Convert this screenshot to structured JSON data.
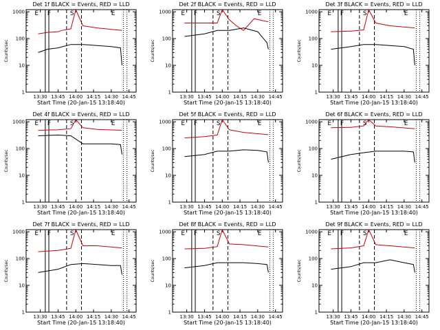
{
  "colors": {
    "events": "#000000",
    "lld": "#cc0000",
    "background": "#ffffff"
  },
  "chart_data": [
    {
      "type": "line",
      "title": "Det 1f BLACK = Events, RED = LLD",
      "ylabel": "Counts/sec",
      "xlabel": "Start Time (20-Jan-15 13:18:40)",
      "yscale": "log",
      "ylim": [
        1,
        1000
      ],
      "ytick_labels": [
        "1",
        "10",
        "100",
        "1000"
      ],
      "xtick_labels": [
        "13:30",
        "13:45",
        "14:00",
        "14:15",
        "14:30",
        "14:45"
      ],
      "markers": [
        "E",
        "F",
        "S",
        "E"
      ],
      "series": [
        {
          "color": "red",
          "x": [
            13.47,
            13.6,
            13.75,
            13.8,
            13.93,
            14.0,
            14.1,
            14.3,
            14.65
          ],
          "y": [
            150,
            170,
            180,
            200,
            230,
            1200,
            300,
            250,
            200
          ]
        },
        {
          "color": "black",
          "x": [
            13.47,
            13.6,
            13.75,
            13.93,
            14.1,
            14.3,
            14.5,
            14.63,
            14.65
          ],
          "y": [
            30,
            40,
            45,
            60,
            60,
            55,
            50,
            45,
            10
          ]
        }
      ]
    },
    {
      "type": "line",
      "title": "Det 2f BLACK = Events, RED = LLD",
      "ylabel": "Counts/sec",
      "xlabel": "Start Time (20-Jan-15 13:18:40)",
      "yscale": "log",
      "ylim": [
        1,
        1000
      ],
      "ytick_labels": [
        "1",
        "10",
        "100",
        "1000"
      ],
      "xtick_labels": [
        "13:30",
        "13:45",
        "14:00",
        "14:15",
        "14:30",
        "14:45"
      ],
      "markers": [
        "E",
        "F",
        "S",
        "E"
      ],
      "series": [
        {
          "color": "red",
          "x": [
            13.47,
            13.75,
            13.93,
            14.0,
            14.1,
            14.2,
            14.3,
            14.45,
            14.65
          ],
          "y": [
            380,
            380,
            380,
            1200,
            500,
            300,
            200,
            550,
            420
          ]
        },
        {
          "color": "black",
          "x": [
            13.47,
            13.75,
            13.93,
            14.1,
            14.3,
            14.5,
            14.63,
            14.65
          ],
          "y": [
            120,
            150,
            200,
            200,
            250,
            180,
            70,
            40
          ]
        }
      ]
    },
    {
      "type": "line",
      "title": "Det 3f BLACK = Events, RED = LLD",
      "ylabel": "Counts/sec",
      "xlabel": "Start Time (20-Jan-15 13:18:40)",
      "yscale": "log",
      "ylim": [
        1,
        1000
      ],
      "ytick_labels": [
        "1",
        "10",
        "100",
        "1000"
      ],
      "xtick_labels": [
        "13:30",
        "13:45",
        "14:00",
        "14:15",
        "14:30",
        "14:45"
      ],
      "markers": [
        "E",
        "F",
        "S",
        "E"
      ],
      "series": [
        {
          "color": "red",
          "x": [
            13.47,
            13.75,
            13.93,
            14.0,
            14.1,
            14.3,
            14.65
          ],
          "y": [
            180,
            190,
            210,
            1200,
            380,
            300,
            250
          ]
        },
        {
          "color": "black",
          "x": [
            13.47,
            13.75,
            13.93,
            14.1,
            14.3,
            14.5,
            14.63,
            14.65
          ],
          "y": [
            40,
            50,
            60,
            60,
            55,
            50,
            40,
            10
          ]
        }
      ]
    },
    {
      "type": "line",
      "title": "Det 4f BLACK = Events, RED = LLD",
      "ylabel": "Counts/sec",
      "xlabel": "Start Time (20-Jan-15 13:18:40)",
      "yscale": "log",
      "ylim": [
        1,
        1000
      ],
      "ytick_labels": [
        "1",
        "10",
        "100",
        "1000"
      ],
      "xtick_labels": [
        "13:30",
        "13:45",
        "14:00",
        "14:15",
        "14:30",
        "14:45"
      ],
      "markers": [
        "E",
        "F",
        "S",
        "E"
      ],
      "series": [
        {
          "color": "red",
          "x": [
            13.47,
            13.75,
            13.93,
            14.0,
            14.1,
            14.3,
            14.65
          ],
          "y": [
            480,
            500,
            550,
            1200,
            600,
            520,
            480
          ]
        },
        {
          "color": "black",
          "x": [
            13.47,
            13.75,
            13.93,
            14.1,
            14.3,
            14.5,
            14.63,
            14.65
          ],
          "y": [
            300,
            320,
            300,
            150,
            150,
            150,
            140,
            60
          ]
        }
      ]
    },
    {
      "type": "line",
      "title": "Det 5f BLACK = Events, RED = LLD",
      "ylabel": "Counts/sec",
      "xlabel": "Start Time (20-Jan-15 13:18:40)",
      "yscale": "log",
      "ylim": [
        1,
        1000
      ],
      "ytick_labels": [
        "1",
        "10",
        "100",
        "1000"
      ],
      "xtick_labels": [
        "13:30",
        "13:45",
        "14:00",
        "14:15",
        "14:30",
        "14:45"
      ],
      "markers": [
        "E",
        "F",
        "S",
        "E"
      ],
      "series": [
        {
          "color": "red",
          "x": [
            13.47,
            13.75,
            13.93,
            14.0,
            14.1,
            14.3,
            14.65
          ],
          "y": [
            250,
            280,
            320,
            1200,
            500,
            400,
            330
          ]
        },
        {
          "color": "black",
          "x": [
            13.47,
            13.75,
            13.93,
            14.1,
            14.3,
            14.5,
            14.63,
            14.65
          ],
          "y": [
            50,
            60,
            80,
            80,
            90,
            85,
            75,
            30
          ]
        }
      ]
    },
    {
      "type": "line",
      "title": "Det 6f BLACK = Events, RED = LLD",
      "ylabel": "Counts/sec",
      "xlabel": "Start Time (20-Jan-15 13:18:40)",
      "yscale": "log",
      "ylim": [
        1,
        1000
      ],
      "ytick_labels": [
        "1",
        "10",
        "100",
        "1000"
      ],
      "xtick_labels": [
        "13:30",
        "13:45",
        "14:00",
        "14:15",
        "14:30",
        "14:45"
      ],
      "markers": [
        "E",
        "F",
        "S",
        "E"
      ],
      "series": [
        {
          "color": "red",
          "x": [
            13.47,
            13.75,
            13.93,
            14.0,
            14.1,
            14.3,
            14.65
          ],
          "y": [
            600,
            620,
            700,
            1200,
            700,
            650,
            550
          ]
        },
        {
          "color": "black",
          "x": [
            13.47,
            13.75,
            13.93,
            14.1,
            14.3,
            14.5,
            14.63,
            14.65
          ],
          "y": [
            40,
            60,
            70,
            80,
            80,
            80,
            75,
            30
          ]
        }
      ]
    },
    {
      "type": "line",
      "title": "Det 7f BLACK = Events, RED = LLD",
      "ylabel": "Counts/sec",
      "xlabel": "Start Time (20-Jan-15 13:18:40)",
      "yscale": "log",
      "ylim": [
        1,
        1000
      ],
      "ytick_labels": [
        "1",
        "10",
        "100",
        "1000"
      ],
      "xtick_labels": [
        "13:30",
        "13:45",
        "14:00",
        "14:15",
        "14:30",
        "14:45"
      ],
      "markers": [
        "E",
        "F",
        "S",
        "E"
      ],
      "series": [
        {
          "color": "red",
          "x": [
            13.47,
            13.75,
            13.93,
            14.0,
            14.1,
            14.3,
            14.65
          ],
          "y": [
            180,
            200,
            240,
            1200,
            300,
            300,
            250
          ]
        },
        {
          "color": "black",
          "x": [
            13.47,
            13.75,
            13.93,
            14.1,
            14.3,
            14.5,
            14.63,
            14.65
          ],
          "y": [
            30,
            40,
            60,
            65,
            60,
            55,
            55,
            25
          ]
        }
      ]
    },
    {
      "type": "line",
      "title": "Det 8f BLACK = Events, RED = LLD",
      "ylabel": "Counts/sec",
      "xlabel": "Start Time (20-Jan-15 13:18:40)",
      "yscale": "log",
      "ylim": [
        1,
        1000
      ],
      "ytick_labels": [
        "1",
        "10",
        "100",
        "1000"
      ],
      "xtick_labels": [
        "13:30",
        "13:45",
        "14:00",
        "14:15",
        "14:30",
        "14:45"
      ],
      "markers": [
        "E",
        "F",
        "S",
        "E"
      ],
      "series": [
        {
          "color": "red",
          "x": [
            13.47,
            13.75,
            13.93,
            14.0,
            14.1,
            14.3,
            14.65
          ],
          "y": [
            230,
            240,
            280,
            1200,
            350,
            330,
            270
          ]
        },
        {
          "color": "black",
          "x": [
            13.47,
            13.75,
            13.93,
            14.1,
            14.3,
            14.5,
            14.63,
            14.65
          ],
          "y": [
            45,
            55,
            70,
            70,
            70,
            65,
            60,
            30
          ]
        }
      ]
    },
    {
      "type": "line",
      "title": "Det 9f BLACK = Events, RED = LLD",
      "ylabel": "Counts/sec",
      "xlabel": "Start Time (20-Jan-15 13:18:40)",
      "yscale": "log",
      "ylim": [
        1,
        1000
      ],
      "ytick_labels": [
        "1",
        "10",
        "100",
        "1000"
      ],
      "xtick_labels": [
        "13:30",
        "13:45",
        "14:00",
        "14:15",
        "14:30",
        "14:45"
      ],
      "markers": [
        "E",
        "F",
        "S",
        "E"
      ],
      "series": [
        {
          "color": "red",
          "x": [
            13.47,
            13.75,
            13.93,
            14.0,
            14.1,
            14.3,
            14.65
          ],
          "y": [
            230,
            250,
            300,
            1200,
            330,
            300,
            250
          ]
        },
        {
          "color": "black",
          "x": [
            13.47,
            13.75,
            13.93,
            14.1,
            14.3,
            14.5,
            14.63,
            14.65
          ],
          "y": [
            40,
            50,
            70,
            70,
            90,
            70,
            60,
            30
          ]
        }
      ]
    }
  ]
}
